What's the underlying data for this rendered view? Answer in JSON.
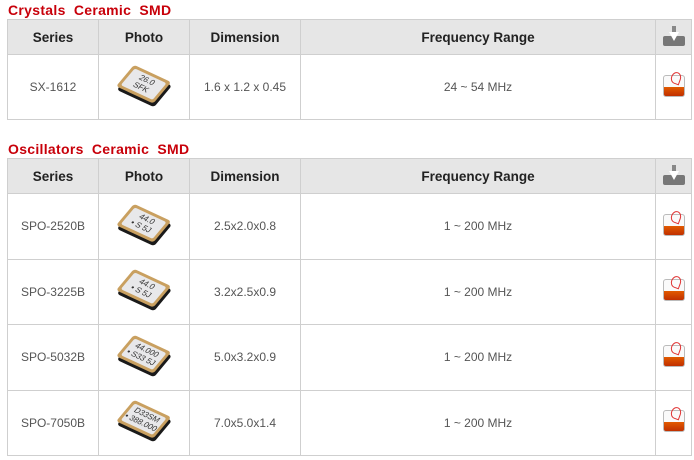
{
  "headers": {
    "series": "Series",
    "photo": "Photo",
    "dimension": "Dimension",
    "frequency": "Frequency Range"
  },
  "crystals": {
    "title": "Crystals  Ceramic SMD",
    "rows": [
      {
        "series": "SX-1612",
        "chip": [
          "26.0",
          "SFK"
        ],
        "dimension": "1.6 x 1.2 x 0.45",
        "frequency": "24 ~ 54 MHz"
      }
    ]
  },
  "oscillators": {
    "title": "Oscillators  Ceramic SMD",
    "rows": [
      {
        "series": "SPO-2520B",
        "chip": [
          "44.0",
          "• S 5J"
        ],
        "dimension": "2.5x2.0x0.8",
        "frequency": "1 ~ 200 MHz"
      },
      {
        "series": "SPO-3225B",
        "chip": [
          "44.0",
          "• S 5J"
        ],
        "dimension": "3.2x2.5x0.9",
        "frequency": "1 ~ 200 MHz"
      },
      {
        "series": "SPO-5032B",
        "chip": [
          "44.000",
          "• S33 5J"
        ],
        "dimension": "5.0x3.2x0.9",
        "frequency": "1 ~ 200 MHz"
      },
      {
        "series": "SPO-7050B",
        "chip": [
          "D33SM",
          "• 388.000"
        ],
        "dimension": "7.0x5.0x1.4",
        "frequency": "1 ~ 200 MHz"
      }
    ]
  },
  "icons": {
    "download": "download-tray-icon",
    "pdf": "pdf-icon"
  },
  "colors": {
    "section_title": "#c8000a",
    "header_bg": "#e6e6e6"
  }
}
